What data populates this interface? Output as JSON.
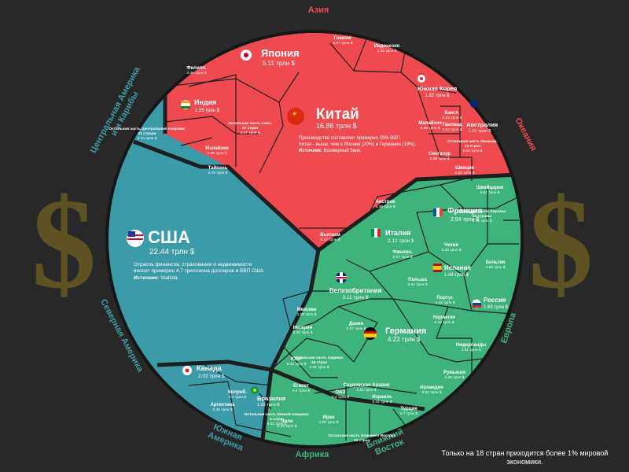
{
  "chart_data": {
    "type": "voronoi-treemap",
    "unit": "трлн $",
    "regions": [
      {
        "name": "Азия",
        "color": "#ef4a4f"
      },
      {
        "name": "Океания",
        "color": "#ef4a4f"
      },
      {
        "name": "Центральная Америка и Карибы",
        "color": "#3c9ba8"
      },
      {
        "name": "Северная Америка",
        "color": "#3c9ba8"
      },
      {
        "name": "Южная Америка",
        "color": "#3c9ba8"
      },
      {
        "name": "Африка",
        "color": "#3fb37c"
      },
      {
        "name": "Ближний Восток",
        "color": "#3fb37c"
      },
      {
        "name": "Европа",
        "color": "#3fb37c"
      }
    ],
    "major": [
      {
        "name": "США",
        "value": "22.44 трлн $",
        "note": [
          "Отрасль финансов, страхования и недвижимости",
          "вносит примерно 4.7 триллиона долларов в ВВП США."
        ],
        "source_label": "Источник:",
        "source": "Statista"
      },
      {
        "name": "Китай",
        "value": "16.86 трлн $",
        "note": [
          "Производство составляет примерно 25% ВВП",
          "Китая - выше, чем в Японии (20%) и Германии (18%)."
        ],
        "source_label": "Источник:",
        "source": "Всемирный банк."
      },
      {
        "name": "Япония",
        "value": "5.11 трлн $"
      },
      {
        "name": "Германия",
        "value": "4.23 трлн $"
      },
      {
        "name": "Великобритания",
        "value": "3.11 трлн $"
      },
      {
        "name": "Франция",
        "value": "2.94 трлн $"
      },
      {
        "name": "Индия",
        "value": "2.95 трлн $"
      },
      {
        "name": "Италия",
        "value": "2.12 трлн $"
      },
      {
        "name": "Канада",
        "value": "2.02 трлн $"
      },
      {
        "name": "Россия",
        "value": "1.65 трлн $"
      },
      {
        "name": "Южная Корея",
        "value": "1.82 трлн $"
      },
      {
        "name": "Бразилия",
        "value": "1.65 трлн $"
      },
      {
        "name": "Австралия",
        "value": "1.61 трлн $"
      },
      {
        "name": "Испания",
        "value": "1.44 трлн $"
      }
    ],
    "minor": [
      {
        "name": "Гонконг",
        "value": "0.37 трлн $"
      },
      {
        "name": "Индонезия",
        "value": "1.15 трлн $"
      },
      {
        "name": "Филипп.",
        "value": "0.39 трлн $"
      },
      {
        "name": "Малайзия",
        "value": "0.39 трлн $"
      },
      {
        "name": "Тайвань",
        "value": "0.79 трлн $"
      },
      {
        "name": "Вьетнам",
        "value": "0.37 трлн $"
      },
      {
        "name": "Сингапур",
        "value": "0.38 трлн $"
      },
      {
        "name": "Бангл.",
        "value": "0.32 трлн $"
      },
      {
        "name": "Таиланд",
        "value": "0.54 трлн $"
      },
      {
        "name": "Малайзия",
        "value": "0.55 трлн $"
      },
      {
        "name": "Остальная часть Азии:",
        "value": "0.47 трлн $",
        "count": "37 стран"
      },
      {
        "name": "Швеция",
        "value": "0.62 трлн $"
      },
      {
        "name": "Швейцария",
        "value": "0.81 трлн $"
      },
      {
        "name": "Австрия",
        "value": "0.48 трлн $"
      },
      {
        "name": "Бельгия",
        "value": "0.58 трлн $"
      },
      {
        "name": "Остальная часть Европы:",
        "value": "0.71 трлн $",
        "count": "32 страны"
      },
      {
        "name": "Чехия",
        "value": "0.26 трлн $"
      },
      {
        "name": "Финлян.",
        "value": "0.27 трлн $"
      },
      {
        "name": "Польша",
        "value": "0.64 трлн $"
      },
      {
        "name": "Португ.",
        "value": "0.25 трлн $"
      },
      {
        "name": "Норвегия",
        "value": "0.43 трлн $"
      },
      {
        "name": "Нидерланды",
        "value": "1.01 трлн $"
      },
      {
        "name": "Дания",
        "value": "0.37 трлн $"
      },
      {
        "name": "Ирландия",
        "value": "0.52 трлн $"
      },
      {
        "name": "Румыния",
        "value": "0.25 трлн $"
      },
      {
        "name": "Нигерия",
        "value": "0.48 трлн $"
      },
      {
        "name": "ЮАР",
        "value": "0.42 трлн $"
      },
      {
        "name": "Египет",
        "value": "0.4 трлн $"
      },
      {
        "name": "Остальная часть Африки:",
        "value": "1.01 трлн $",
        "count": "49 стран"
      },
      {
        "name": "Саудовская Аравия",
        "value": "0.84 трлн $"
      },
      {
        "name": "ОАЭ",
        "value": "0.4 трлн $"
      },
      {
        "name": "Израиль",
        "value": "0.41 трлн $"
      },
      {
        "name": "Иран",
        "value": "1.08 трлн $"
      },
      {
        "name": "Турция",
        "value": "0.7 трлн $"
      },
      {
        "name": "Остальная часть Ближнего Востока",
        "value": "",
        "count": "10 стран"
      },
      {
        "name": "Мексика",
        "value": "1.29 трлн $"
      },
      {
        "name": "Аргентина",
        "value": "0.46 трлн $"
      },
      {
        "name": "Чили",
        "value": "0.33 трлн $"
      },
      {
        "name": "Колумб.",
        "value": "0.3 трлн $"
      },
      {
        "name": "Остальная часть Южной Америки:",
        "value": "0.53 трлн $",
        "count": "6 стран"
      },
      {
        "name": "Остальная часть Центральной Америки:",
        "value": "0.44 трлн $",
        "count": "21 страна"
      },
      {
        "name": "Остальная часть Океании:",
        "value": "0.04 трлн $",
        "count": "13 стран"
      }
    ],
    "footnote": "Только на 18 стран приходится более 1% мировой экономики."
  }
}
